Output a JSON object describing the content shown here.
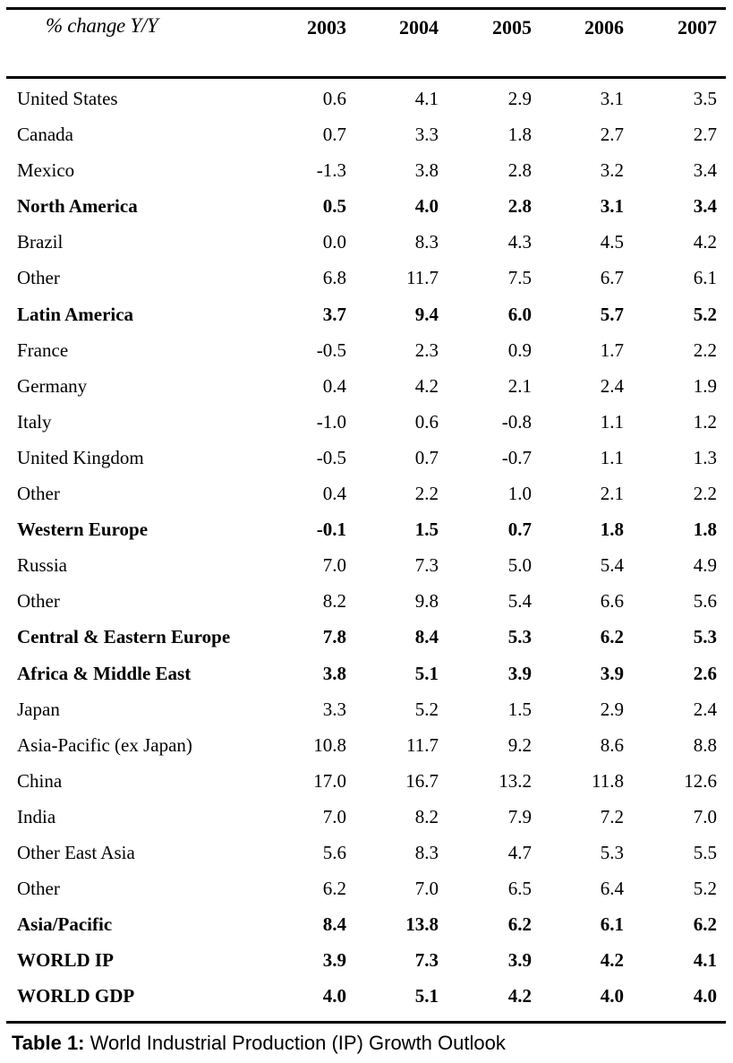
{
  "table": {
    "header_label": "% change Y/Y",
    "years": [
      "2003",
      "2004",
      "2005",
      "2006",
      "2007"
    ],
    "rows": [
      {
        "label": "United States",
        "bold": false,
        "values": [
          "0.6",
          "4.1",
          "2.9",
          "3.1",
          "3.5"
        ]
      },
      {
        "label": "Canada",
        "bold": false,
        "values": [
          "0.7",
          "3.3",
          "1.8",
          "2.7",
          "2.7"
        ]
      },
      {
        "label": "Mexico",
        "bold": false,
        "values": [
          "-1.3",
          "3.8",
          "2.8",
          "3.2",
          "3.4"
        ]
      },
      {
        "label": "North America",
        "bold": true,
        "values": [
          "0.5",
          "4.0",
          "2.8",
          "3.1",
          "3.4"
        ]
      },
      {
        "label": "Brazil",
        "bold": false,
        "values": [
          "0.0",
          "8.3",
          "4.3",
          "4.5",
          "4.2"
        ]
      },
      {
        "label": "Other",
        "bold": false,
        "values": [
          "6.8",
          "11.7",
          "7.5",
          "6.7",
          "6.1"
        ]
      },
      {
        "label": "Latin America",
        "bold": true,
        "values": [
          "3.7",
          "9.4",
          "6.0",
          "5.7",
          "5.2"
        ]
      },
      {
        "label": "France",
        "bold": false,
        "values": [
          "-0.5",
          "2.3",
          "0.9",
          "1.7",
          "2.2"
        ]
      },
      {
        "label": "Germany",
        "bold": false,
        "values": [
          "0.4",
          "4.2",
          "2.1",
          "2.4",
          "1.9"
        ]
      },
      {
        "label": "Italy",
        "bold": false,
        "values": [
          "-1.0",
          "0.6",
          "-0.8",
          "1.1",
          "1.2"
        ]
      },
      {
        "label": "United Kingdom",
        "bold": false,
        "values": [
          "-0.5",
          "0.7",
          "-0.7",
          "1.1",
          "1.3"
        ]
      },
      {
        "label": "Other",
        "bold": false,
        "values": [
          "0.4",
          "2.2",
          "1.0",
          "2.1",
          "2.2"
        ]
      },
      {
        "label": "Western Europe",
        "bold": true,
        "values": [
          "-0.1",
          "1.5",
          "0.7",
          "1.8",
          "1.8"
        ]
      },
      {
        "label": "Russia",
        "bold": false,
        "values": [
          "7.0",
          "7.3",
          "5.0",
          "5.4",
          "4.9"
        ]
      },
      {
        "label": "Other",
        "bold": false,
        "values": [
          "8.2",
          "9.8",
          "5.4",
          "6.6",
          "5.6"
        ]
      },
      {
        "label": "Central & Eastern Europe",
        "bold": true,
        "values": [
          "7.8",
          "8.4",
          "5.3",
          "6.2",
          "5.3"
        ]
      },
      {
        "label": "Africa & Middle East",
        "bold": true,
        "values": [
          "3.8",
          "5.1",
          "3.9",
          "3.9",
          "2.6"
        ]
      },
      {
        "label": "Japan",
        "bold": false,
        "values": [
          "3.3",
          "5.2",
          "1.5",
          "2.9",
          "2.4"
        ]
      },
      {
        "label": "Asia-Pacific (ex Japan)",
        "bold": false,
        "values": [
          "10.8",
          "11.7",
          "9.2",
          "8.6",
          "8.8"
        ]
      },
      {
        "label": "China",
        "bold": false,
        "values": [
          "17.0",
          "16.7",
          "13.2",
          "11.8",
          "12.6"
        ]
      },
      {
        "label": "India",
        "bold": false,
        "values": [
          "7.0",
          "8.2",
          "7.9",
          "7.2",
          "7.0"
        ]
      },
      {
        "label": "Other East Asia",
        "bold": false,
        "values": [
          "5.6",
          "8.3",
          "4.7",
          "5.3",
          "5.5"
        ]
      },
      {
        "label": "Other",
        "bold": false,
        "values": [
          "6.2",
          "7.0",
          "6.5",
          "6.4",
          "5.2"
        ]
      },
      {
        "label": "Asia/Pacific",
        "bold": true,
        "values": [
          "8.4",
          "13.8",
          "6.2",
          "6.1",
          "6.2"
        ]
      },
      {
        "label": "WORLD IP",
        "bold": true,
        "values": [
          "3.9",
          "7.3",
          "3.9",
          "4.2",
          "4.1"
        ]
      },
      {
        "label": "WORLD GDP",
        "bold": true,
        "values": [
          "4.0",
          "5.1",
          "4.2",
          "4.0",
          "4.0"
        ]
      }
    ]
  },
  "caption": {
    "prefix": "Table 1:",
    "text": " World Industrial Production (IP) Growth Outlook"
  }
}
